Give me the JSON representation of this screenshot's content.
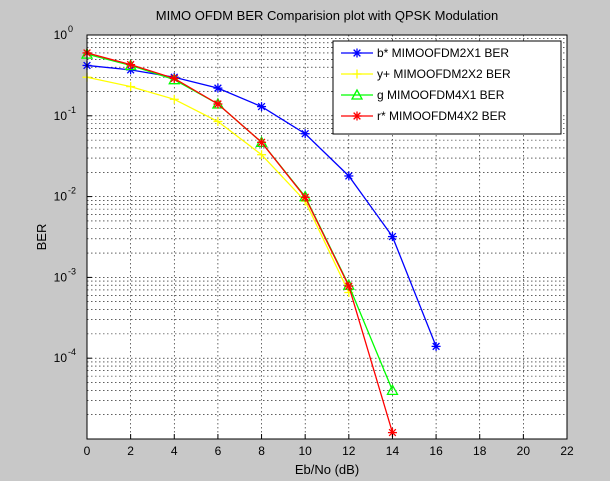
{
  "chart_data": {
    "type": "line",
    "title": "MIMO OFDM BER Comparision plot with QPSK Modulation",
    "xlabel": "Eb/No (dB)",
    "ylabel": "BER",
    "xlim": [
      0,
      22
    ],
    "ylim": [
      1e-05,
      1
    ],
    "yscale": "log",
    "grid": true,
    "legend_position": "top-right",
    "x_ticks": [
      "0",
      "2",
      "4",
      "6",
      "8",
      "10",
      "12",
      "14",
      "16",
      "18",
      "20",
      "22"
    ],
    "y_ticks": [
      {
        "base": "10",
        "exp": "0",
        "value": 1
      },
      {
        "base": "10",
        "exp": "-1",
        "value": 0.1
      },
      {
        "base": "10",
        "exp": "-2",
        "value": 0.01
      },
      {
        "base": "10",
        "exp": "-3",
        "value": 0.001
      },
      {
        "base": "10",
        "exp": "-4",
        "value": 0.0001
      }
    ],
    "series": [
      {
        "name": "b* MIMOOFDM2X1 BER",
        "color": "#0000ff",
        "marker": "asterisk",
        "x": [
          0,
          2,
          4,
          6,
          8,
          10,
          12,
          14,
          16
        ],
        "y": [
          0.42,
          0.37,
          0.3,
          0.22,
          0.13,
          0.06,
          0.018,
          0.0032,
          0.00014
        ]
      },
      {
        "name": "y+ MIMOOFDM2X2 BER",
        "color": "#ffff00",
        "marker": "plus",
        "x": [
          0,
          2,
          4,
          6,
          8,
          10,
          12
        ],
        "y": [
          0.3,
          0.23,
          0.16,
          0.085,
          0.033,
          0.0088,
          0.00065
        ]
      },
      {
        "name": "g MIMOOFDM4X1 BER",
        "color": "#00ff00",
        "marker": "triangle",
        "x": [
          0,
          2,
          4,
          6,
          8,
          10,
          12,
          14
        ],
        "y": [
          0.58,
          0.42,
          0.28,
          0.14,
          0.047,
          0.01,
          0.0008,
          4e-05
        ]
      },
      {
        "name": "r* MIMOOFDM4X2 BER",
        "color": "#ff0000",
        "marker": "asterisk",
        "x": [
          0,
          2,
          4,
          6,
          8,
          10,
          12,
          14
        ],
        "y": [
          0.6,
          0.43,
          0.29,
          0.14,
          0.047,
          0.0098,
          0.00078,
          1.2e-05
        ]
      }
    ]
  }
}
